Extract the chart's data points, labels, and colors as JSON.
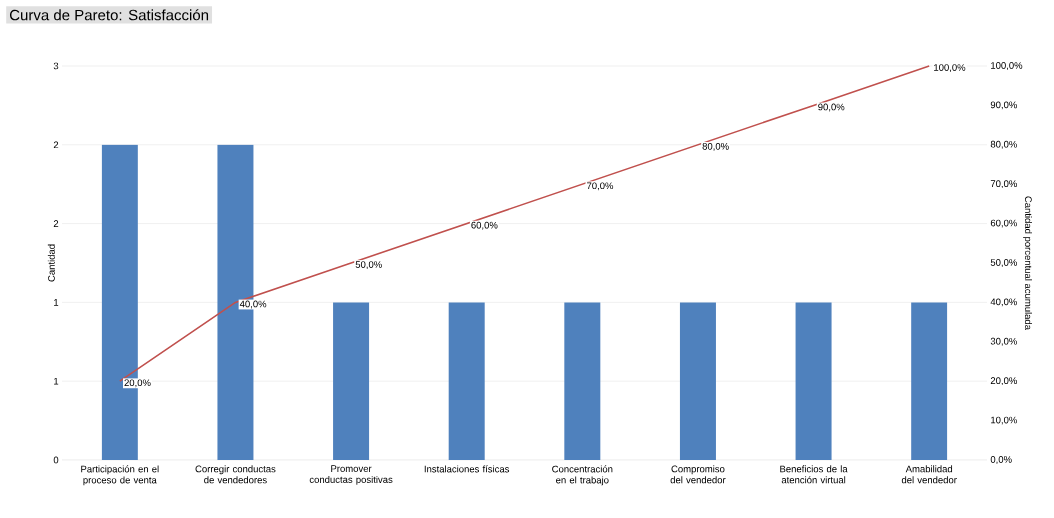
{
  "chart_data": {
    "type": "bar",
    "title": "Curva de Pareto: Satisfacción",
    "ylabel": "Cantidad",
    "y2label": "Cantidad porcentual acumulada",
    "categories": [
      "Participación en el proceso de venta",
      "Corregir conductas de vendedores",
      "Promover conductas positivas",
      "Instalaciones físicas",
      "Concentración en el trabajo",
      "Compromiso del vendedor",
      "Beneficios de la atención virtual",
      "Amabilidad del vendedor"
    ],
    "series": [
      {
        "color": "#4f81bd",
        "values": [
          2,
          2,
          1,
          1,
          1,
          1,
          1,
          1
        ]
      },
      {
        "type": "line",
        "axis": "y2",
        "color": "#c0504d",
        "values": [
          20,
          40,
          50,
          60,
          70,
          80,
          90,
          100
        ],
        "value_labels": [
          "20,0%",
          "40,0%",
          "50,0%",
          "60,0%",
          "70,0%",
          "80,0%",
          "90,0%",
          "100,0%"
        ]
      }
    ],
    "ylim": [
      0,
      2.5
    ],
    "yticks": [
      {
        "value": 0,
        "label": "0"
      },
      {
        "value": 0.5,
        "label": "1"
      },
      {
        "value": 1,
        "label": "1"
      },
      {
        "value": 1.5,
        "label": "2"
      },
      {
        "value": 2,
        "label": "2"
      },
      {
        "value": 2.5,
        "label": "3"
      }
    ],
    "y2lim": [
      0,
      100
    ],
    "y2ticks": [
      {
        "value": 0,
        "label": "0,0%"
      },
      {
        "value": 10,
        "label": "10,0%"
      },
      {
        "value": 20,
        "label": "20,0%"
      },
      {
        "value": 30,
        "label": "30,0%"
      },
      {
        "value": 40,
        "label": "40,0%"
      },
      {
        "value": 50,
        "label": "50,0%"
      },
      {
        "value": 60,
        "label": "60,0%"
      },
      {
        "value": 70,
        "label": "70,0%"
      },
      {
        "value": 80,
        "label": "80,0%"
      },
      {
        "value": 90,
        "label": "90,0%"
      },
      {
        "value": 100,
        "label": "100,0%"
      }
    ],
    "grid": "y"
  }
}
